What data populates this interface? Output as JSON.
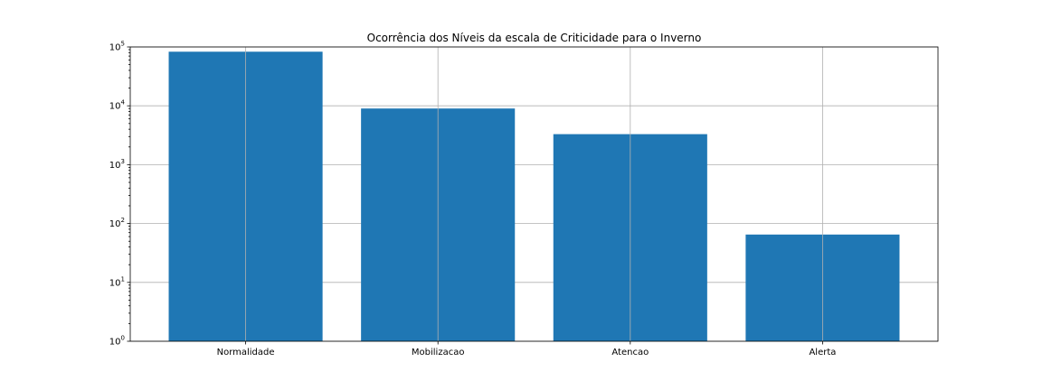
{
  "chart_data": {
    "type": "bar",
    "title": "Ocorrência dos Níveis da escala de Criticidade para o Inverno",
    "xlabel": "",
    "ylabel": "",
    "yscale": "log",
    "ylim": [
      1,
      100000
    ],
    "grid": true,
    "categories": [
      "Normalidade",
      "Mobilizacao",
      "Atencao",
      "Alerta"
    ],
    "values": [
      83000,
      9000,
      3300,
      65
    ],
    "ytick_values": [
      1,
      10,
      100,
      1000,
      10000,
      100000
    ],
    "ytick_bases": [
      "10",
      "10",
      "10",
      "10",
      "10",
      "10"
    ],
    "ytick_exponents": [
      "0",
      "1",
      "2",
      "3",
      "4",
      "5"
    ],
    "bar_color": "#1f77b4"
  }
}
